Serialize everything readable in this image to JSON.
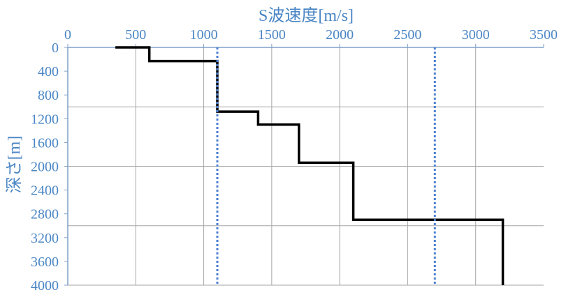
{
  "chart_data": {
    "type": "line",
    "xlabel": "S波速度[m/s]",
    "ylabel": "深さ[m]",
    "xlim": [
      0,
      3500
    ],
    "ylim": [
      0,
      4000
    ],
    "x_axis_position": "top",
    "y_axis_inverted": true,
    "x_ticks": [
      "0",
      "500",
      "1000",
      "1500",
      "2000",
      "2500",
      "3000",
      "3500"
    ],
    "y_ticks": [
      "0",
      "400",
      "800",
      "1200",
      "1600",
      "2000",
      "2400",
      "2800",
      "3200",
      "3600",
      "4000"
    ],
    "grid": true,
    "series": [
      {
        "style": "solid",
        "color": "#000000",
        "points": [
          [
            350,
            0
          ],
          [
            600,
            0
          ],
          [
            600,
            230
          ],
          [
            1100,
            230
          ],
          [
            1100,
            1080
          ],
          [
            1400,
            1080
          ],
          [
            1400,
            1300
          ],
          [
            1700,
            1300
          ],
          [
            1700,
            1940
          ],
          [
            2100,
            1940
          ],
          [
            2100,
            2900
          ],
          [
            3200,
            2900
          ],
          [
            3200,
            4000
          ]
        ]
      },
      {
        "style": "dotted",
        "color": "#4a7fd0",
        "points": [
          [
            1100,
            0
          ],
          [
            1100,
            4000
          ]
        ]
      },
      {
        "style": "dotted",
        "color": "#4a7fd0",
        "points": [
          [
            2700,
            0
          ],
          [
            2700,
            4000
          ]
        ]
      }
    ],
    "colors": {
      "axis_text": "#4a86c5",
      "grid": "#a6a6a6",
      "axis_line": "#7f9fc8"
    }
  }
}
